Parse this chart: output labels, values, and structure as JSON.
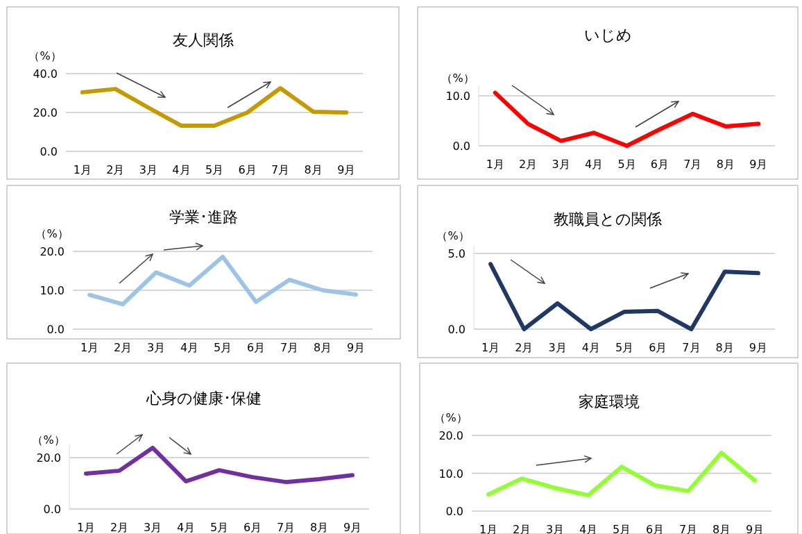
{
  "chart_data": [
    {
      "type": "line",
      "title": "友人関係",
      "ylabel": "（%）",
      "categories": [
        "1月",
        "2月",
        "3月",
        "4月",
        "5月",
        "6月",
        "7月",
        "8月",
        "9月"
      ],
      "series": [
        {
          "color": "#c49a00",
          "values": [
            30.4,
            32.1,
            22.5,
            13.2,
            13.2,
            20.0,
            32.5,
            20.4,
            20.0
          ]
        }
      ],
      "ylim": [
        0,
        40
      ],
      "yticks": [
        {
          "value": 0,
          "label": "0.0"
        },
        {
          "value": 20,
          "label": "20.0"
        },
        {
          "value": 40,
          "label": "40.0"
        }
      ],
      "grid": "y"
    },
    {
      "type": "line",
      "title": "いじめ",
      "ylabel": "（%）",
      "categories": [
        "1月",
        "2月",
        "3月",
        "4月",
        "5月",
        "6月",
        "7月",
        "8月",
        "9月"
      ],
      "series": [
        {
          "color": "#ff0000",
          "values": [
            10.6,
            4.4,
            1.0,
            2.6,
            0.0,
            3.3,
            6.4,
            3.9,
            4.4
          ]
        }
      ],
      "ylim": [
        0,
        12
      ],
      "yticks": [
        {
          "value": 0,
          "label": "0.0"
        },
        {
          "value": 10,
          "label": "10.0"
        }
      ],
      "grid": "y"
    },
    {
      "type": "line",
      "title": "学業･進路",
      "ylabel": "（%）",
      "categories": [
        "1月",
        "2月",
        "3月",
        "4月",
        "5月",
        "6月",
        "7月",
        "8月",
        "9月"
      ],
      "series": [
        {
          "color": "#9dc3e6",
          "values": [
            8.8,
            6.4,
            14.6,
            11.2,
            18.6,
            7.0,
            12.7,
            10.0,
            8.9
          ]
        }
      ],
      "ylim": [
        0,
        20
      ],
      "yticks": [
        {
          "value": 0,
          "label": "0.0"
        },
        {
          "value": 10,
          "label": "10.0"
        },
        {
          "value": 20,
          "label": "20.0"
        }
      ],
      "grid": "y"
    },
    {
      "type": "line",
      "title": "教職員との関係",
      "ylabel": "（%）",
      "categories": [
        "1月",
        "2月",
        "3月",
        "4月",
        "5月",
        "6月",
        "7月",
        "8月",
        "9月"
      ],
      "series": [
        {
          "color": "#203864",
          "values": [
            4.3,
            0.0,
            1.7,
            0.0,
            1.15,
            1.2,
            0.0,
            3.8,
            3.7
          ]
        }
      ],
      "ylim": [
        0,
        5.5
      ],
      "yticks": [
        {
          "value": 0,
          "label": "0.0"
        },
        {
          "value": 5,
          "label": "5.0"
        }
      ],
      "grid": "y"
    },
    {
      "type": "line",
      "title": "心身の健康･保健",
      "ylabel": "（%）",
      "categories": [
        "1月",
        "2月",
        "3月",
        "4月",
        "5月",
        "6月",
        "7月",
        "8月",
        "9月"
      ],
      "series": [
        {
          "color": "#7030a0",
          "values": [
            13.8,
            14.9,
            23.8,
            10.8,
            15.1,
            12.4,
            10.5,
            11.6,
            13.2
          ]
        }
      ],
      "ylim": [
        0,
        25
      ],
      "yticks": [
        {
          "value": 0,
          "label": "0.0"
        },
        {
          "value": 20,
          "label": "20.0"
        }
      ],
      "grid": "y"
    },
    {
      "type": "line",
      "title": "家庭環境",
      "ylabel": "（%）",
      "categories": [
        "1月",
        "2月",
        "3月",
        "4月",
        "5月",
        "6月",
        "7月",
        "8月",
        "9月"
      ],
      "series": [
        {
          "color": "#92ff33",
          "values": [
            4.4,
            8.6,
            6.1,
            4.2,
            11.7,
            6.8,
            5.3,
            15.4,
            8.1
          ]
        }
      ],
      "ylim": [
        0,
        20
      ],
      "yticks": [
        {
          "value": 0,
          "label": "0.0"
        },
        {
          "value": 10,
          "label": "10.0"
        },
        {
          "value": 20,
          "label": "20.0"
        }
      ],
      "grid": "y"
    }
  ]
}
